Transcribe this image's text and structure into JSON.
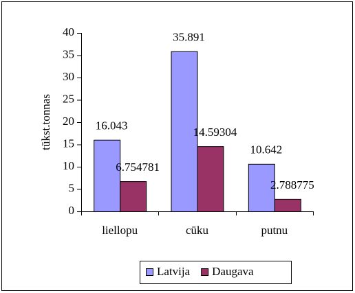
{
  "chart_data": {
    "type": "bar",
    "y_axis_label": "tūkst.tonnas",
    "categories": [
      "liellopu",
      "cūku",
      "putnu"
    ],
    "series": [
      {
        "name": "Latvija",
        "color": "#9999ff",
        "values": [
          16.043,
          35.891,
          10.642
        ]
      },
      {
        "name": "Daugava",
        "color": "#993366",
        "values": [
          6.754781,
          14.59304,
          2.788775
        ]
      }
    ],
    "ylim": [
      0,
      40
    ],
    "yticks": [
      0,
      5,
      10,
      15,
      20,
      25,
      30,
      35,
      40
    ],
    "grid": false,
    "legend": "bottom"
  }
}
